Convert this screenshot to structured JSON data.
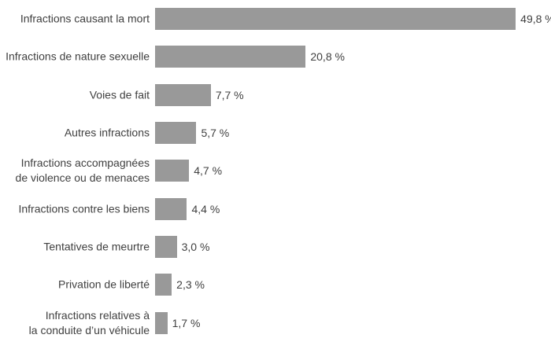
{
  "chart_data": {
    "type": "bar",
    "orientation": "horizontal",
    "title": "",
    "xlabel": "",
    "ylabel": "",
    "grid": false,
    "legend": false,
    "xlim": [
      0,
      54.6
    ],
    "bar_color": "#999999",
    "text_color": "#404040",
    "background_color": "#ffffff",
    "categories": [
      "Infractions causant la mort",
      "Infractions de nature sexuelle",
      "Voies de fait",
      "Autres infractions",
      "Infractions accompagnées de violence ou de menaces",
      "Infractions contre les biens",
      "Tentatives de meurtre",
      "Privation de liberté",
      "Infractions relatives à la conduite d’un véhicule"
    ],
    "label_lines": [
      [
        "Infractions causant la mort"
      ],
      [
        "Infractions de nature sexuelle"
      ],
      [
        "Voies de fait"
      ],
      [
        "Autres infractions"
      ],
      [
        "Infractions accompagnées",
        "de violence ou de menaces"
      ],
      [
        "Infractions contre les biens"
      ],
      [
        "Tentatives de meurtre"
      ],
      [
        "Privation de liberté"
      ],
      [
        "Infractions relatives à",
        "la conduite d’un véhicule"
      ]
    ],
    "values": [
      49.8,
      20.8,
      7.7,
      5.7,
      4.7,
      4.4,
      3.0,
      2.3,
      1.7
    ],
    "value_labels": [
      "49,8 %",
      "20,8 %",
      "7,7 %",
      "5,7 %",
      "4,7 %",
      "4,4 %",
      "3,0 %",
      "2,3 %",
      "1,7 %"
    ]
  }
}
